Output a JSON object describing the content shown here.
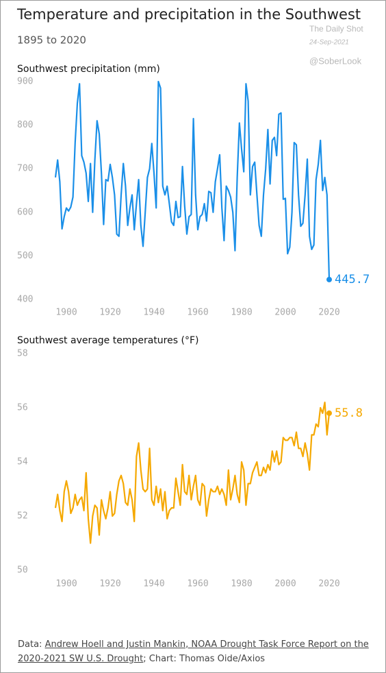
{
  "title": "Temperature and precipitation in the Southwest",
  "subtitle": "1895 to 2020",
  "watermarks": [
    "The Daily Shot",
    "24-Sep-2021",
    "@SoberLook"
  ],
  "source": {
    "prefix": "Data: ",
    "link": "Andrew Hoell and Justin Mankin, NOAA Drought Task Force Report on the 2020-2021 SW U.S. Drought",
    "suffix": "; Chart: Thomas Oide/Axios"
  },
  "chart_data": [
    {
      "type": "line",
      "title": "Southwest precipitation (mm)",
      "color": "#1a8fe8",
      "x": [
        1895,
        1896,
        1897,
        1898,
        1899,
        1900,
        1901,
        1902,
        1903,
        1904,
        1905,
        1906,
        1907,
        1908,
        1909,
        1910,
        1911,
        1912,
        1913,
        1914,
        1915,
        1916,
        1917,
        1918,
        1919,
        1920,
        1921,
        1922,
        1923,
        1924,
        1925,
        1926,
        1927,
        1928,
        1929,
        1930,
        1931,
        1932,
        1933,
        1934,
        1935,
        1936,
        1937,
        1938,
        1939,
        1940,
        1941,
        1942,
        1943,
        1944,
        1945,
        1946,
        1947,
        1948,
        1949,
        1950,
        1951,
        1952,
        1953,
        1954,
        1955,
        1956,
        1957,
        1958,
        1959,
        1960,
        1961,
        1962,
        1963,
        1964,
        1965,
        1966,
        1967,
        1968,
        1969,
        1970,
        1971,
        1972,
        1973,
        1974,
        1975,
        1976,
        1977,
        1978,
        1979,
        1980,
        1981,
        1982,
        1983,
        1984,
        1985,
        1986,
        1987,
        1988,
        1989,
        1990,
        1991,
        1992,
        1993,
        1994,
        1995,
        1996,
        1997,
        1998,
        1999,
        2000,
        2001,
        2002,
        2003,
        2004,
        2005,
        2006,
        2007,
        2008,
        2009,
        2010,
        2011,
        2012,
        2013,
        2014,
        2015,
        2016,
        2017,
        2018,
        2019,
        2020
      ],
      "values": [
        680,
        720,
        670,
        562,
        590,
        610,
        603,
        612,
        635,
        760,
        850,
        895,
        730,
        715,
        690,
        625,
        712,
        600,
        720,
        810,
        780,
        690,
        572,
        675,
        672,
        710,
        680,
        640,
        550,
        545,
        640,
        712,
        660,
        570,
        610,
        640,
        560,
        620,
        675,
        570,
        522,
        600,
        680,
        700,
        758,
        690,
        610,
        900,
        885,
        660,
        640,
        660,
        620,
        578,
        570,
        625,
        588,
        590,
        705,
        615,
        550,
        590,
        595,
        815,
        640,
        560,
        590,
        595,
        620,
        580,
        648,
        645,
        600,
        670,
        700,
        732,
        610,
        535,
        660,
        650,
        635,
        600,
        512,
        680,
        805,
        745,
        693,
        895,
        855,
        640,
        705,
        715,
        640,
        570,
        545,
        640,
        700,
        790,
        665,
        765,
        772,
        730,
        825,
        828,
        630,
        632,
        505,
        520,
        600,
        760,
        755,
        640,
        568,
        575,
        640,
        722,
        545,
        515,
        525,
        675,
        710,
        765,
        650,
        680,
        640,
        445.7
      ],
      "xlim": [
        1895,
        2020
      ],
      "xticks": [
        1900,
        1920,
        1940,
        1960,
        1980,
        2000,
        2020
      ],
      "ylim": [
        400,
        900
      ],
      "yticks": [
        400,
        500,
        600,
        700,
        800,
        900
      ]
    },
    {
      "type": "line",
      "title": "Southwest average temperatures (°F)",
      "color": "#f5a800",
      "x": [
        1895,
        1896,
        1897,
        1898,
        1899,
        1900,
        1901,
        1902,
        1903,
        1904,
        1905,
        1906,
        1907,
        1908,
        1909,
        1910,
        1911,
        1912,
        1913,
        1914,
        1915,
        1916,
        1917,
        1918,
        1919,
        1920,
        1921,
        1922,
        1923,
        1924,
        1925,
        1926,
        1927,
        1928,
        1929,
        1930,
        1931,
        1932,
        1933,
        1934,
        1935,
        1936,
        1937,
        1938,
        1939,
        1940,
        1941,
        1942,
        1943,
        1944,
        1945,
        1946,
        1947,
        1948,
        1949,
        1950,
        1951,
        1952,
        1953,
        1954,
        1955,
        1956,
        1957,
        1958,
        1959,
        1960,
        1961,
        1962,
        1963,
        1964,
        1965,
        1966,
        1967,
        1968,
        1969,
        1970,
        1971,
        1972,
        1973,
        1974,
        1975,
        1976,
        1977,
        1978,
        1979,
        1980,
        1981,
        1982,
        1983,
        1984,
        1985,
        1986,
        1987,
        1988,
        1989,
        1990,
        1991,
        1992,
        1993,
        1994,
        1995,
        1996,
        1997,
        1998,
        1999,
        2000,
        2001,
        2002,
        2003,
        2004,
        2005,
        2006,
        2007,
        2008,
        2009,
        2010,
        2011,
        2012,
        2013,
        2014,
        2015,
        2016,
        2017,
        2018,
        2019,
        2020
      ],
      "values": [
        52.3,
        52.8,
        52.2,
        51.8,
        52.9,
        53.3,
        52.9,
        52.1,
        52.3,
        52.8,
        52.4,
        52.6,
        52.7,
        52.2,
        53.6,
        51.9,
        51.0,
        52.0,
        52.4,
        52.3,
        51.3,
        52.6,
        52.2,
        51.9,
        52.3,
        52.9,
        52.0,
        52.1,
        52.8,
        53.3,
        53.5,
        53.2,
        52.5,
        52.4,
        53.0,
        52.6,
        51.8,
        54.2,
        54.7,
        53.7,
        53.0,
        52.9,
        53.0,
        54.5,
        52.6,
        52.4,
        53.1,
        52.5,
        53.0,
        52.2,
        52.9,
        51.9,
        52.2,
        52.3,
        52.3,
        53.4,
        52.9,
        52.4,
        53.9,
        52.9,
        52.8,
        53.5,
        52.6,
        53.1,
        53.5,
        52.6,
        52.4,
        53.2,
        53.1,
        52.0,
        52.6,
        53.0,
        52.9,
        52.9,
        53.1,
        52.8,
        53.0,
        52.8,
        52.4,
        53.7,
        52.6,
        53.0,
        53.5,
        52.8,
        52.5,
        54.0,
        53.7,
        52.4,
        53.2,
        53.2,
        53.6,
        53.8,
        54.0,
        53.5,
        53.5,
        53.8,
        53.6,
        53.9,
        53.7,
        54.4,
        54.0,
        54.4,
        53.9,
        54.0,
        54.9,
        54.8,
        54.8,
        54.9,
        54.9,
        54.6,
        55.1,
        54.5,
        54.5,
        54.2,
        54.7,
        54.3,
        53.7,
        55.0,
        55.0,
        55.4,
        55.3,
        56.0,
        55.8,
        56.2,
        55.0,
        55.8
      ],
      "xlim": [
        1895,
        2020
      ],
      "xticks": [
        1900,
        1920,
        1940,
        1960,
        1980,
        2000,
        2020
      ],
      "ylim": [
        50,
        58
      ],
      "yticks": [
        50,
        52,
        54,
        56,
        58
      ]
    }
  ]
}
